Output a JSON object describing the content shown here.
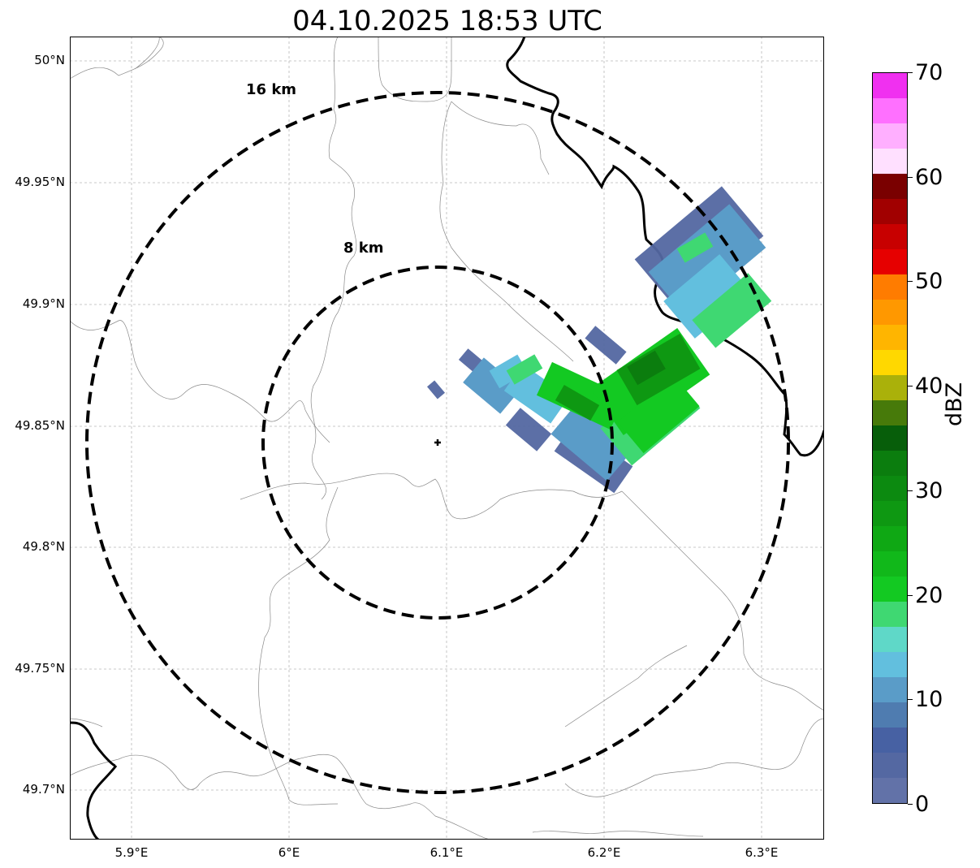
{
  "title": "04.10.2025 18:53 UTC",
  "map": {
    "lat_ticks": [
      "50°N",
      "49.95°N",
      "49.9°N",
      "49.85°N",
      "49.8°N",
      "49.75°N",
      "49.7°N"
    ],
    "lon_ticks": [
      "5.9°E",
      "6°E",
      "6.1°E",
      "6.2°E",
      "6.3°E"
    ],
    "lat_range": [
      49.68,
      50.01
    ],
    "lon_range": [
      5.86,
      6.34
    ],
    "radar_center": {
      "lat": 49.843,
      "lon": 6.096
    },
    "range_rings": [
      {
        "label": "8 km",
        "radius_km": 8
      },
      {
        "label": "16 km",
        "radius_km": 16
      }
    ],
    "gridlines": true
  },
  "colorbar": {
    "label": "dBZ",
    "ticks": [
      "0",
      "10",
      "20",
      "30",
      "40",
      "50",
      "60",
      "70"
    ],
    "min": 0,
    "max": 70,
    "colors": [
      "#6272a8",
      "#5468a2",
      "#4761a3",
      "#4f7cb0",
      "#5a9cc8",
      "#62bfde",
      "#5fd8c8",
      "#3fd872",
      "#13c922",
      "#11b81a",
      "#0fa814",
      "#0e9812",
      "#0c8a10",
      "#0b7d0e",
      "#075e0a",
      "#477a0a",
      "#aab10a",
      "#ffd800",
      "#ffb500",
      "#ff9800",
      "#ff7c00",
      "#e60000",
      "#c80000",
      "#a10000",
      "#7a0000",
      "#ffe0ff",
      "#ffafff",
      "#ff70ff",
      "#f030f0"
    ]
  }
}
